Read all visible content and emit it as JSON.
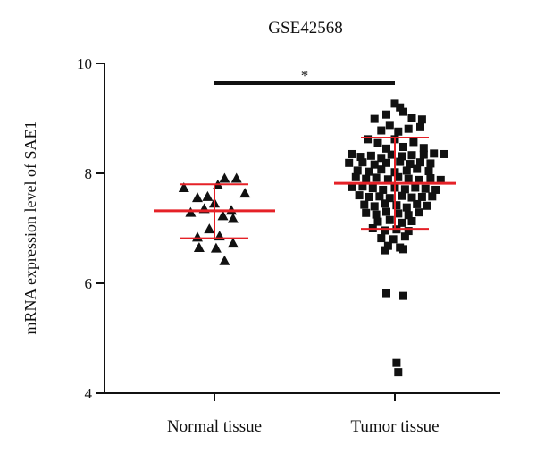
{
  "chart_data": {
    "type": "scatter",
    "title": "GSE42568",
    "ylabel": "mRNA expression level of SAE1",
    "xlabel": "",
    "ylim": [
      4,
      10
    ],
    "yticks": [
      "4",
      "6",
      "8",
      "10"
    ],
    "categories": [
      "Normal tissue",
      "Tumor tissue"
    ],
    "significance": "*",
    "series": [
      {
        "name": "Normal tissue",
        "marker": "triangle",
        "mean": 7.32,
        "sd_upper": 7.8,
        "sd_lower": 6.82,
        "points": [
          [
            -0.18,
            7.73
          ],
          [
            -0.1,
            7.55
          ],
          [
            -0.04,
            7.57
          ],
          [
            0.0,
            7.45
          ],
          [
            0.06,
            7.9
          ],
          [
            0.02,
            7.78
          ],
          [
            0.13,
            7.9
          ],
          [
            0.1,
            7.32
          ],
          [
            0.18,
            7.63
          ],
          [
            -0.14,
            7.28
          ],
          [
            -0.06,
            7.35
          ],
          [
            0.05,
            7.22
          ],
          [
            0.11,
            7.17
          ],
          [
            -0.03,
            6.98
          ],
          [
            -0.1,
            6.83
          ],
          [
            0.03,
            6.85
          ],
          [
            0.11,
            6.72
          ],
          [
            -0.09,
            6.64
          ],
          [
            0.01,
            6.63
          ],
          [
            0.06,
            6.4
          ]
        ]
      },
      {
        "name": "Tumor tissue",
        "marker": "square",
        "mean": 7.82,
        "sd_upper": 8.65,
        "sd_lower": 6.99,
        "points": [
          [
            0.0,
            9.27
          ],
          [
            0.03,
            9.2
          ],
          [
            -0.05,
            9.07
          ],
          [
            0.05,
            9.12
          ],
          [
            -0.12,
            8.99
          ],
          [
            0.1,
            9.0
          ],
          [
            0.16,
            8.98
          ],
          [
            -0.03,
            8.88
          ],
          [
            -0.08,
            8.78
          ],
          [
            0.08,
            8.81
          ],
          [
            0.02,
            8.76
          ],
          [
            0.15,
            8.84
          ],
          [
            -0.16,
            8.62
          ],
          [
            -0.1,
            8.55
          ],
          [
            0.0,
            8.62
          ],
          [
            0.11,
            8.57
          ],
          [
            -0.05,
            8.45
          ],
          [
            0.05,
            8.48
          ],
          [
            0.17,
            8.46
          ],
          [
            -0.25,
            8.35
          ],
          [
            -0.2,
            8.3
          ],
          [
            -0.14,
            8.32
          ],
          [
            -0.08,
            8.28
          ],
          [
            -0.02,
            8.34
          ],
          [
            0.04,
            8.31
          ],
          [
            0.1,
            8.33
          ],
          [
            0.17,
            8.34
          ],
          [
            0.23,
            8.36
          ],
          [
            0.29,
            8.35
          ],
          [
            -0.27,
            8.19
          ],
          [
            -0.19,
            8.2
          ],
          [
            -0.12,
            8.16
          ],
          [
            -0.05,
            8.19
          ],
          [
            0.03,
            8.21
          ],
          [
            0.09,
            8.17
          ],
          [
            0.15,
            8.2
          ],
          [
            0.21,
            8.18
          ],
          [
            -0.22,
            8.05
          ],
          [
            -0.15,
            8.03
          ],
          [
            -0.08,
            8.07
          ],
          [
            0.0,
            8.02
          ],
          [
            0.07,
            8.05
          ],
          [
            0.13,
            8.08
          ],
          [
            0.2,
            8.04
          ],
          [
            -0.23,
            7.93
          ],
          [
            -0.17,
            7.9
          ],
          [
            -0.11,
            7.92
          ],
          [
            -0.04,
            7.89
          ],
          [
            0.02,
            7.93
          ],
          [
            0.08,
            7.9
          ],
          [
            0.14,
            7.88
          ],
          [
            0.21,
            7.91
          ],
          [
            0.27,
            7.88
          ],
          [
            -0.25,
            7.75
          ],
          [
            -0.19,
            7.76
          ],
          [
            -0.13,
            7.73
          ],
          [
            -0.07,
            7.7
          ],
          [
            0.0,
            7.74
          ],
          [
            0.06,
            7.71
          ],
          [
            0.12,
            7.74
          ],
          [
            0.18,
            7.72
          ],
          [
            0.24,
            7.7
          ],
          [
            -0.21,
            7.6
          ],
          [
            -0.15,
            7.57
          ],
          [
            -0.09,
            7.58
          ],
          [
            -0.03,
            7.55
          ],
          [
            0.04,
            7.59
          ],
          [
            0.1,
            7.56
          ],
          [
            0.16,
            7.57
          ],
          [
            0.22,
            7.58
          ],
          [
            -0.18,
            7.43
          ],
          [
            -0.12,
            7.4
          ],
          [
            -0.06,
            7.45
          ],
          [
            0.01,
            7.42
          ],
          [
            0.07,
            7.38
          ],
          [
            0.13,
            7.44
          ],
          [
            0.19,
            7.41
          ],
          [
            -0.17,
            7.28
          ],
          [
            -0.11,
            7.25
          ],
          [
            -0.05,
            7.3
          ],
          [
            0.02,
            7.27
          ],
          [
            0.08,
            7.24
          ],
          [
            0.14,
            7.29
          ],
          [
            -0.1,
            7.12
          ],
          [
            -0.03,
            7.15
          ],
          [
            0.04,
            7.1
          ],
          [
            0.1,
            7.13
          ],
          [
            -0.13,
            7.0
          ],
          [
            -0.06,
            6.96
          ],
          [
            0.01,
            6.98
          ],
          [
            0.08,
            6.95
          ],
          [
            -0.08,
            6.82
          ],
          [
            -0.01,
            6.8
          ],
          [
            0.06,
            6.85
          ],
          [
            -0.04,
            6.68
          ],
          [
            0.03,
            6.65
          ],
          [
            -0.06,
            6.6
          ],
          [
            0.05,
            6.62
          ],
          [
            -0.05,
            5.82
          ],
          [
            0.05,
            5.77
          ],
          [
            0.01,
            4.55
          ],
          [
            0.02,
            4.38
          ]
        ]
      }
    ]
  }
}
